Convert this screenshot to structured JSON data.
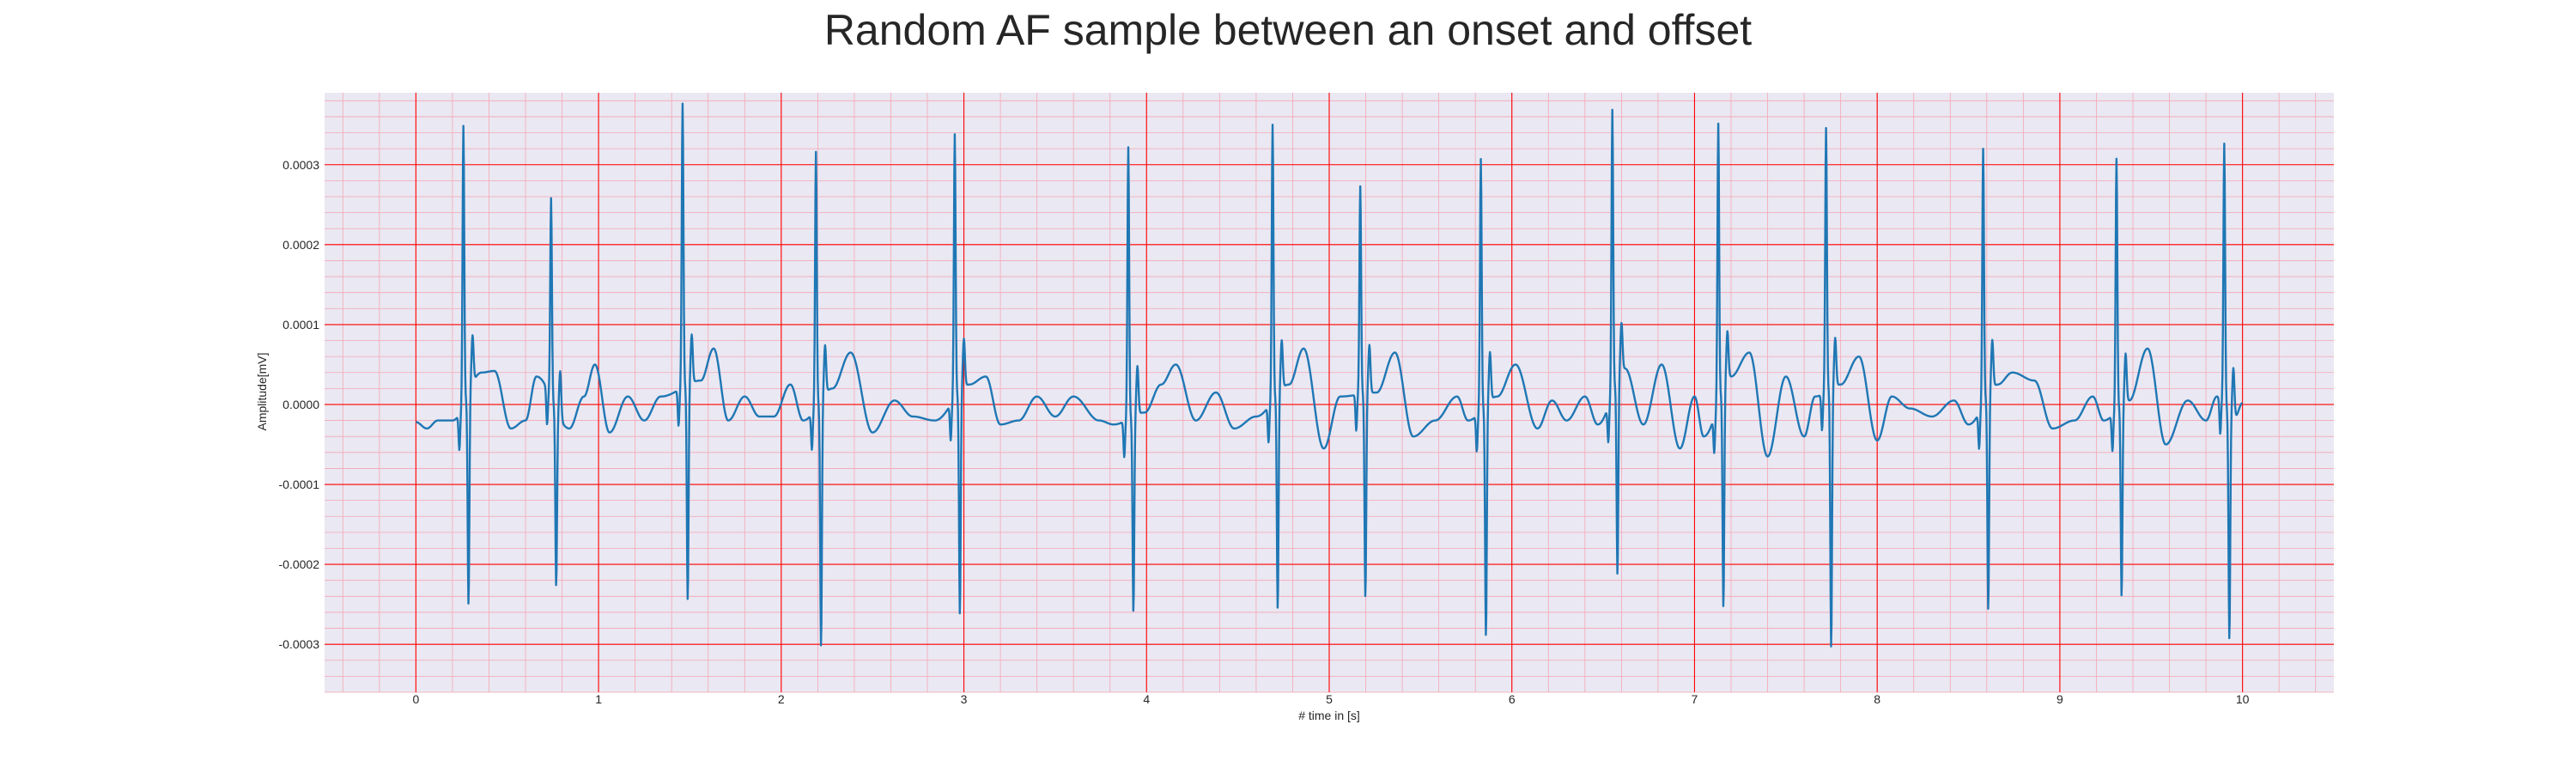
{
  "chart_data": {
    "type": "line",
    "title": "Random AF sample between an onset and offset",
    "xlabel": "# time in [s]",
    "ylabel": "Amplitude[mV]",
    "xlim": [
      -0.5,
      10.5
    ],
    "ylim": [
      -0.00036,
      0.00039
    ],
    "x_ticks": [
      0,
      1,
      2,
      3,
      4,
      5,
      6,
      7,
      8,
      9,
      10
    ],
    "x_tick_labels": [
      "0",
      "1",
      "2",
      "3",
      "4",
      "5",
      "6",
      "7",
      "8",
      "9",
      "10"
    ],
    "y_ticks": [
      -0.0003,
      -0.0002,
      -0.0001,
      0.0,
      0.0001,
      0.0002,
      0.0003
    ],
    "y_tick_labels": [
      "-0.0003",
      "-0.0002",
      "-0.0001",
      "0.0000",
      "0.0001",
      "0.0002",
      "0.0003"
    ],
    "grid": true,
    "line_color": "#1f77b4",
    "major_grid_color": "#ff0000",
    "minor_grid_color": "#f4a6b5",
    "plot_background": "#eae8f2",
    "series": [
      {
        "x_range": [
          0,
          10
        ],
        "beats": [
          {
            "t": 0.26,
            "peak": 0.00035,
            "trough": -0.000265
          },
          {
            "t": 0.74,
            "peak": 0.00025,
            "trough": -0.00022
          },
          {
            "t": 1.46,
            "peak": 0.000355,
            "trough": -0.00027
          },
          {
            "t": 2.19,
            "peak": 0.00032,
            "trough": -0.00031
          },
          {
            "t": 2.95,
            "peak": 0.00033,
            "trough": -0.00028
          },
          {
            "t": 3.9,
            "peak": 0.00034,
            "trough": -0.000245
          },
          {
            "t": 4.69,
            "peak": 0.000345,
            "trough": -0.00027
          },
          {
            "t": 5.17,
            "peak": 0.00026,
            "trough": -0.000255
          },
          {
            "t": 5.83,
            "peak": 0.000315,
            "trough": -0.00029
          },
          {
            "t": 6.55,
            "peak": 0.000355,
            "trough": -0.000245
          },
          {
            "t": 7.13,
            "peak": 0.00035,
            "trough": -0.000275
          },
          {
            "t": 7.72,
            "peak": 0.00033,
            "trough": -0.000325
          },
          {
            "t": 8.58,
            "peak": 0.00032,
            "trough": -0.00027
          },
          {
            "t": 9.31,
            "peak": 0.000315,
            "trough": -0.00024
          },
          {
            "t": 9.9,
            "peak": 0.000325,
            "trough": -0.000285
          }
        ],
        "baseline": [
          [
            0.0,
            -2.2e-05
          ],
          [
            0.06,
            -3e-05
          ],
          [
            0.12,
            -2e-05
          ],
          [
            0.2,
            -2e-05
          ],
          [
            0.36,
            4e-05
          ],
          [
            0.43,
            4.2e-05
          ],
          [
            0.52,
            -3e-05
          ],
          [
            0.6,
            -2e-05
          ],
          [
            0.66,
            3.5e-05
          ],
          [
            0.84,
            -3e-05
          ],
          [
            0.92,
            1e-05
          ],
          [
            0.98,
            5e-05
          ],
          [
            1.06,
            -3.5e-05
          ],
          [
            1.16,
            1e-05
          ],
          [
            1.25,
            -2e-05
          ],
          [
            1.34,
            1e-05
          ],
          [
            1.56,
            3e-05
          ],
          [
            1.63,
            7e-05
          ],
          [
            1.71,
            -2e-05
          ],
          [
            1.8,
            1e-05
          ],
          [
            1.88,
            -1.5e-05
          ],
          [
            1.96,
            -1.5e-05
          ],
          [
            2.05,
            2.5e-05
          ],
          [
            2.12,
            -2e-05
          ],
          [
            2.28,
            2e-05
          ],
          [
            2.38,
            6.5e-05
          ],
          [
            2.5,
            -3.5e-05
          ],
          [
            2.62,
            5e-06
          ],
          [
            2.72,
            -1.5e-05
          ],
          [
            2.84,
            -2e-05
          ],
          [
            3.03,
            2.5e-05
          ],
          [
            3.12,
            3.5e-05
          ],
          [
            3.2,
            -2.5e-05
          ],
          [
            3.3,
            -2e-05
          ],
          [
            3.4,
            1e-05
          ],
          [
            3.5,
            -1.5e-05
          ],
          [
            3.6,
            1e-05
          ],
          [
            3.74,
            -2e-05
          ],
          [
            3.82,
            -2.5e-05
          ],
          [
            3.99,
            -1e-05
          ],
          [
            4.08,
            2.5e-05
          ],
          [
            4.16,
            5e-05
          ],
          [
            4.27,
            -2e-05
          ],
          [
            4.38,
            1.5e-05
          ],
          [
            4.48,
            -3e-05
          ],
          [
            4.6,
            -1.5e-05
          ],
          [
            4.78,
            2.5e-05
          ],
          [
            4.86,
            7e-05
          ],
          [
            4.97,
            -5.5e-05
          ],
          [
            5.06,
            1e-05
          ],
          [
            5.26,
            1.5e-05
          ],
          [
            5.36,
            6.5e-05
          ],
          [
            5.46,
            -4e-05
          ],
          [
            5.58,
            -2e-05
          ],
          [
            5.7,
            1e-05
          ],
          [
            5.76,
            -2e-05
          ],
          [
            5.92,
            1e-05
          ],
          [
            6.02,
            5e-05
          ],
          [
            6.14,
            -3e-05
          ],
          [
            6.22,
            5e-06
          ],
          [
            6.3,
            -2e-05
          ],
          [
            6.4,
            1e-05
          ],
          [
            6.47,
            -2.5e-05
          ],
          [
            6.62,
            4.5e-05
          ],
          [
            6.72,
            -2.5e-05
          ],
          [
            6.82,
            5e-05
          ],
          [
            6.92,
            -5.5e-05
          ],
          [
            7.0,
            1e-05
          ],
          [
            7.05,
            -4e-05
          ],
          [
            7.2,
            3.5e-05
          ],
          [
            7.3,
            6.5e-05
          ],
          [
            7.4,
            -6.5e-05
          ],
          [
            7.5,
            3.5e-05
          ],
          [
            7.6,
            -4e-05
          ],
          [
            7.66,
            1e-05
          ],
          [
            7.8,
            2.5e-05
          ],
          [
            7.9,
            6e-05
          ],
          [
            8.0,
            -4.5e-05
          ],
          [
            8.08,
            1e-05
          ],
          [
            8.18,
            -5e-06
          ],
          [
            8.3,
            -1.5e-05
          ],
          [
            8.42,
            5e-06
          ],
          [
            8.5,
            -2.5e-05
          ],
          [
            8.66,
            2.5e-05
          ],
          [
            8.74,
            4e-05
          ],
          [
            8.86,
            3e-05
          ],
          [
            8.96,
            -3e-05
          ],
          [
            9.08,
            -2e-05
          ],
          [
            9.18,
            1e-05
          ],
          [
            9.24,
            -2e-05
          ],
          [
            9.38,
            5e-06
          ],
          [
            9.48,
            7e-05
          ],
          [
            9.58,
            -5e-05
          ],
          [
            9.7,
            5e-06
          ],
          [
            9.8,
            -2e-05
          ],
          [
            9.86,
            1e-05
          ],
          [
            9.96,
            -1.5e-05
          ],
          [
            10.0,
            2e-06
          ]
        ]
      }
    ]
  }
}
